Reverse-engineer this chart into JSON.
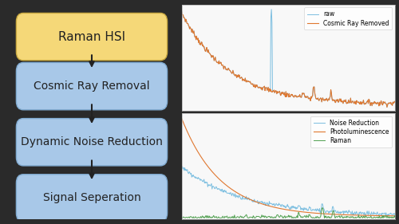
{
  "background_color": "#2a2a2a",
  "box_yellow": {
    "facecolor": "#f5d878",
    "edgecolor": "#c8a840",
    "text": "Raman HSI"
  },
  "box_blue": {
    "facecolor": "#a8c8e8",
    "edgecolor": "#80aad0",
    "text_list": [
      "Cosmic Ray Removal",
      "Dynamic Noise Reduction",
      "Signal Seperation"
    ]
  },
  "plot1_legend": [
    "raw",
    "Cosmic Ray Removed"
  ],
  "plot1_colors": [
    "#7bbee0",
    "#e07830"
  ],
  "plot2_legend": [
    "Noise Reduction",
    "Photoluminescence",
    "Raman"
  ],
  "plot2_colors": [
    "#7bbee0",
    "#e07830",
    "#50a050"
  ],
  "plot_bg": "#f8f8f8",
  "plot_border": "#aaaaaa",
  "arrow_color": "#222222",
  "text_color": "#222222",
  "font_size_yellow": 11,
  "font_size_blue": 10
}
